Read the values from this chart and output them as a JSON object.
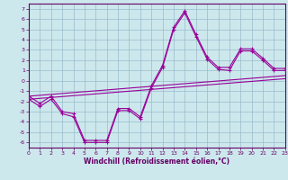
{
  "xlabel": "Windchill (Refroidissement éolien,°C)",
  "background_color": "#cce8ec",
  "grid_color": "#99bbcc",
  "line_color": "#990099",
  "xlim": [
    0,
    23
  ],
  "ylim": [
    -6.5,
    7.5
  ],
  "yticks": [
    -6,
    -5,
    -4,
    -3,
    -2,
    -1,
    0,
    1,
    2,
    3,
    4,
    5,
    6,
    7
  ],
  "xticks": [
    0,
    1,
    2,
    3,
    4,
    5,
    6,
    7,
    8,
    9,
    10,
    11,
    12,
    13,
    14,
    15,
    16,
    17,
    18,
    19,
    20,
    21,
    22,
    23
  ],
  "curve1_x": [
    0,
    1,
    2,
    3,
    4,
    5,
    6,
    7,
    8,
    9,
    10,
    11,
    12,
    13,
    14,
    15,
    16,
    17,
    18,
    19,
    20,
    21,
    22,
    23
  ],
  "curve1_y": [
    -1.5,
    -2.2,
    -1.5,
    -3.0,
    -3.2,
    -5.8,
    -5.8,
    -5.8,
    -2.7,
    -2.7,
    -3.5,
    -0.5,
    1.5,
    5.2,
    6.8,
    4.5,
    2.3,
    1.3,
    1.3,
    3.1,
    3.1,
    2.2,
    1.2,
    1.2
  ],
  "curve2_x": [
    0,
    1,
    2,
    3,
    4,
    5,
    6,
    7,
    8,
    9,
    10,
    11,
    12,
    13,
    14,
    15,
    16,
    17,
    18,
    19,
    20,
    21,
    22,
    23
  ],
  "curve2_y": [
    -1.8,
    -2.5,
    -1.8,
    -3.2,
    -3.5,
    -6.0,
    -6.0,
    -6.0,
    -2.9,
    -2.9,
    -3.7,
    -0.7,
    1.3,
    5.0,
    6.6,
    4.3,
    2.1,
    1.1,
    1.0,
    2.9,
    2.9,
    2.0,
    1.0,
    1.0
  ],
  "trend1_x": [
    0,
    23
  ],
  "trend1_y": [
    -1.5,
    0.5
  ],
  "trend2_x": [
    0,
    23
  ],
  "trend2_y": [
    -1.8,
    0.2
  ],
  "tick_color": "#660066",
  "xlabel_fontsize": 5.5,
  "tick_fontsize": 4.5,
  "linewidth": 0.8,
  "marker_size": 2.5
}
